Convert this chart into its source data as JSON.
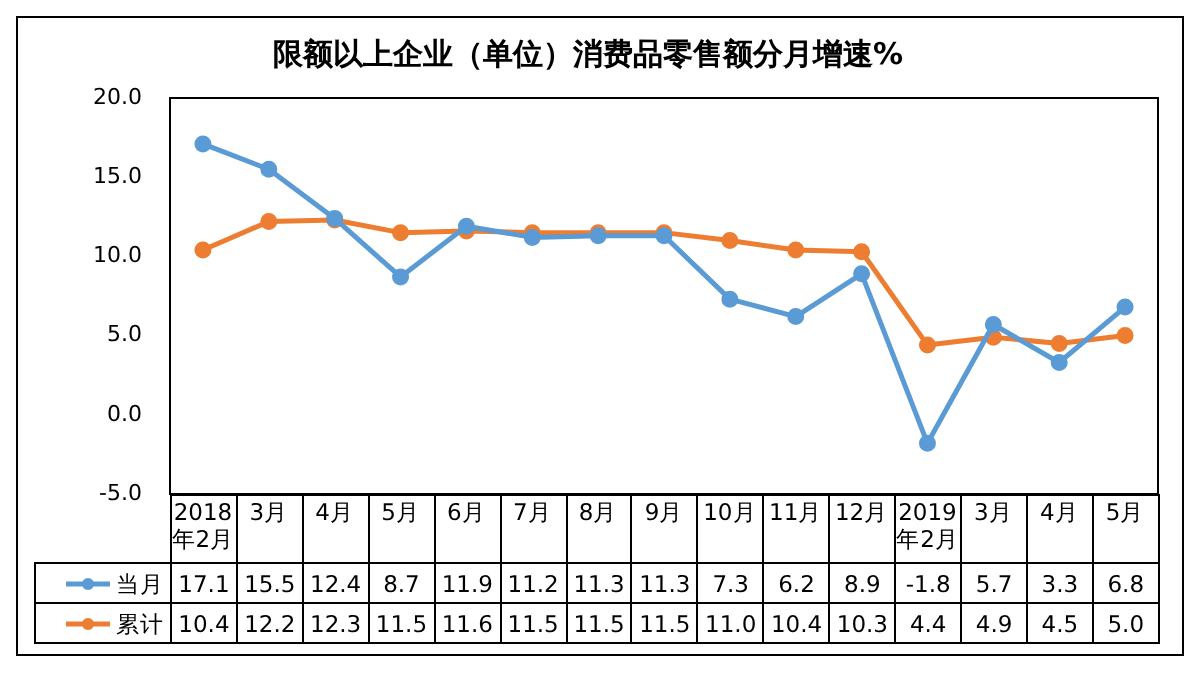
{
  "chart_data": {
    "type": "line",
    "title": "限额以上企业（单位）消费品零售额分月增速%",
    "categories": [
      "2018年2月",
      "3月",
      "4月",
      "5月",
      "6月",
      "7月",
      "8月",
      "9月",
      "10月",
      "11月",
      "12月",
      "2019年2月",
      "3月",
      "4月",
      "5月"
    ],
    "series": [
      {
        "name": "当月",
        "color": "#5b9bd5",
        "values": [
          17.1,
          15.5,
          12.4,
          8.7,
          11.9,
          11.2,
          11.3,
          11.3,
          7.3,
          6.2,
          8.9,
          -1.8,
          5.7,
          3.3,
          6.8
        ],
        "value_labels": [
          "17.1",
          "15.5",
          "12.4",
          "8.7",
          "11.9",
          "11.2",
          "11.3",
          "11.3",
          "7.3",
          "6.2",
          "8.9",
          "-1.8",
          "5.7",
          "3.3",
          "6.8"
        ]
      },
      {
        "name": "累计",
        "color": "#ed7d31",
        "values": [
          10.4,
          12.2,
          12.3,
          11.5,
          11.6,
          11.5,
          11.5,
          11.5,
          11.0,
          10.4,
          10.3,
          4.4,
          4.9,
          4.5,
          5.0
        ],
        "value_labels": [
          "10.4",
          "12.2",
          "12.3",
          "11.5",
          "11.6",
          "11.5",
          "11.5",
          "11.5",
          "11.0",
          "10.4",
          "10.3",
          "4.4",
          "4.9",
          "4.5",
          "5.0"
        ]
      }
    ],
    "ylim": [
      -5,
      20
    ],
    "yticks": [
      {
        "value": -5,
        "label": "-5.0"
      },
      {
        "value": 0,
        "label": "0.0"
      },
      {
        "value": 5,
        "label": "5.0"
      },
      {
        "value": 10,
        "label": "10.0"
      },
      {
        "value": 15,
        "label": "15.0"
      },
      {
        "value": 20,
        "label": "20.0"
      }
    ],
    "grid": false,
    "legend": "bottom",
    "marker": "circle",
    "line_style": "solid"
  }
}
